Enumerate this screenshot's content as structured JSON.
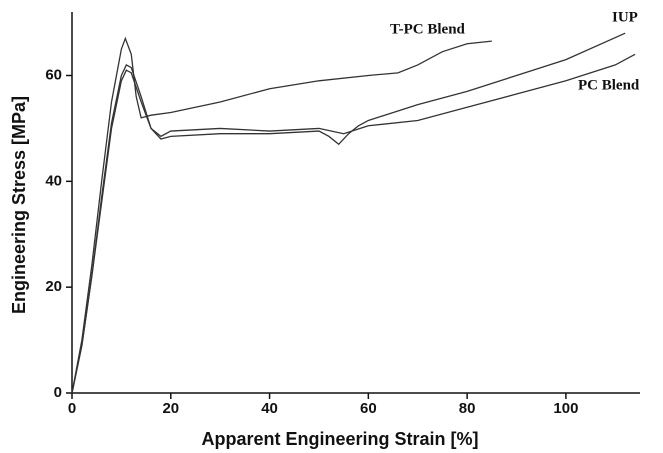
{
  "chart_data": {
    "type": "line",
    "x_label": "Apparent Engineering Strain [%]",
    "y_label": "Engineering Stress [MPa]",
    "xlim": [
      0,
      115
    ],
    "xticks": [
      0,
      20,
      40,
      60,
      80,
      100
    ],
    "ylim": [
      0,
      72
    ],
    "yticks": [
      0,
      20,
      40,
      60
    ],
    "series": [
      {
        "name": "T-PC Blend",
        "color": "#333333",
        "x": [
          0,
          2,
          4,
          6,
          8,
          10,
          10.8,
          12,
          13,
          14,
          16,
          20,
          30,
          40,
          50,
          60,
          66,
          70,
          75,
          80,
          85
        ],
        "values": [
          0,
          10,
          24,
          40,
          55,
          65,
          67,
          64,
          56,
          52,
          52.5,
          53,
          55,
          57.5,
          59,
          60,
          60.5,
          62,
          64.5,
          66,
          66.5
        ]
      },
      {
        "name": "IUP",
        "color": "#333333",
        "x": [
          0,
          2,
          4,
          6,
          8,
          10,
          11,
          12,
          14,
          16,
          18,
          20,
          30,
          40,
          50,
          52,
          54,
          56,
          58,
          60,
          70,
          80,
          90,
          100,
          112
        ],
        "values": [
          0,
          9,
          22,
          37,
          51,
          60,
          62,
          61.5,
          56,
          50,
          48,
          48.5,
          49,
          49,
          49.5,
          48.5,
          47,
          49,
          50.5,
          51.5,
          54.5,
          57,
          60,
          63,
          68
        ]
      },
      {
        "name": "PC Blend",
        "color": "#333333",
        "x": [
          0,
          2,
          4,
          6,
          8,
          10,
          11,
          12,
          14,
          16,
          18,
          20,
          30,
          40,
          50,
          55,
          60,
          70,
          80,
          90,
          100,
          110,
          114
        ],
        "values": [
          0,
          9,
          22,
          36,
          50,
          59,
          61,
          60.5,
          55,
          50,
          48.5,
          49.5,
          50,
          49.5,
          50,
          49,
          50.5,
          51.5,
          54,
          56.5,
          59,
          62,
          64
        ]
      }
    ]
  }
}
